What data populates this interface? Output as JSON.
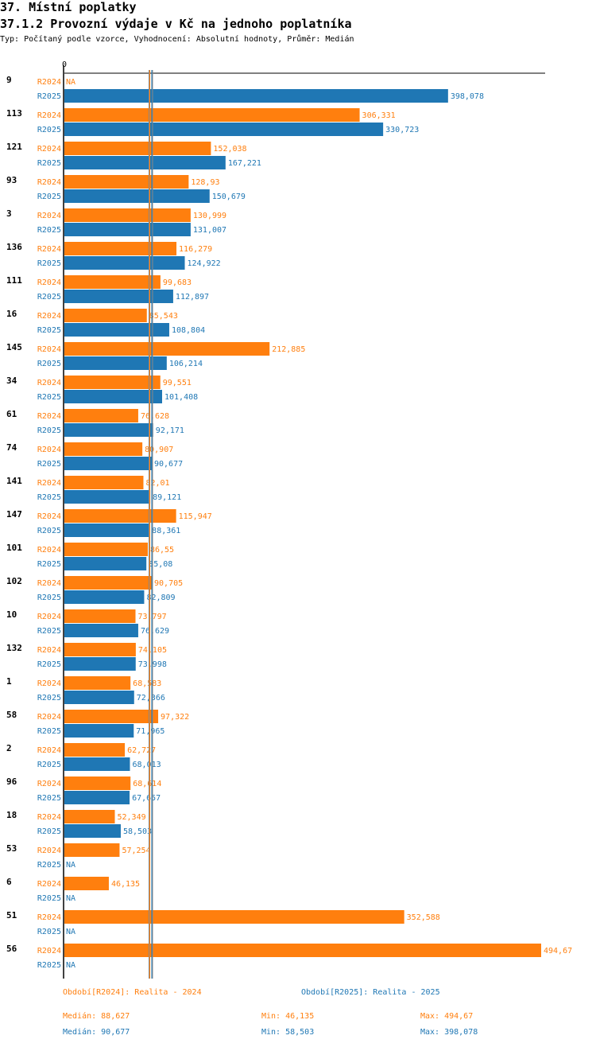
{
  "header": {
    "title": "37. Místní poplatky",
    "subtitle": "37.1.2 Provozní výdaje v Kč na jednoho poplatníka",
    "meta": "Typ: Počítaný podle vzorce, Vyhodnocení: Absolutní hodnoty, Průměr: Medián"
  },
  "colors": {
    "r2024": "#ff7f0e",
    "r2025": "#1f77b4",
    "text": "#000000"
  },
  "chart_data": {
    "type": "bar",
    "orientation": "horizontal",
    "title": "37.1.2 Provozní výdaje v Kč na jednoho poplatníka",
    "x_axis_label": "0",
    "xlim": [
      0,
      494.67
    ],
    "series_names": [
      "R2024",
      "R2025"
    ],
    "na_label": "NA",
    "median_lines": [
      88.627,
      90.677
    ],
    "groups": [
      {
        "id": "9",
        "r2024": null,
        "r2024_label": "NA",
        "r2025": 398.078,
        "r2025_label": "398,078"
      },
      {
        "id": "113",
        "r2024": 306.331,
        "r2024_label": "306,331",
        "r2025": 330.723,
        "r2025_label": "330,723"
      },
      {
        "id": "121",
        "r2024": 152.038,
        "r2024_label": "152,038",
        "r2025": 167.221,
        "r2025_label": "167,221"
      },
      {
        "id": "93",
        "r2024": 128.93,
        "r2024_label": "128,93",
        "r2025": 150.679,
        "r2025_label": "150,679"
      },
      {
        "id": "3",
        "r2024": 130.999,
        "r2024_label": "130,999",
        "r2025": 131.007,
        "r2025_label": "131,007"
      },
      {
        "id": "136",
        "r2024": 116.279,
        "r2024_label": "116,279",
        "r2025": 124.922,
        "r2025_label": "124,922"
      },
      {
        "id": "111",
        "r2024": 99.683,
        "r2024_label": "99,683",
        "r2025": 112.897,
        "r2025_label": "112,897"
      },
      {
        "id": "16",
        "r2024": 85.543,
        "r2024_label": "85,543",
        "r2025": 108.804,
        "r2025_label": "108,804"
      },
      {
        "id": "145",
        "r2024": 212.885,
        "r2024_label": "212,885",
        "r2025": 106.214,
        "r2025_label": "106,214"
      },
      {
        "id": "34",
        "r2024": 99.551,
        "r2024_label": "99,551",
        "r2025": 101.408,
        "r2025_label": "101,408"
      },
      {
        "id": "61",
        "r2024": 76.628,
        "r2024_label": "76,628",
        "r2025": 92.171,
        "r2025_label": "92,171"
      },
      {
        "id": "74",
        "r2024": 80.907,
        "r2024_label": "80,907",
        "r2025": 90.677,
        "r2025_label": "90,677"
      },
      {
        "id": "141",
        "r2024": 82.01,
        "r2024_label": "82,01",
        "r2025": 89.121,
        "r2025_label": "89,121"
      },
      {
        "id": "147",
        "r2024": 115.947,
        "r2024_label": "115,947",
        "r2025": 88.361,
        "r2025_label": "88,361"
      },
      {
        "id": "101",
        "r2024": 86.55,
        "r2024_label": "86,55",
        "r2025": 85.08,
        "r2025_label": "85,08"
      },
      {
        "id": "102",
        "r2024": 90.705,
        "r2024_label": "90,705",
        "r2025": 82.809,
        "r2025_label": "82,809"
      },
      {
        "id": "10",
        "r2024": 73.797,
        "r2024_label": "73,797",
        "r2025": 76.629,
        "r2025_label": "76,629"
      },
      {
        "id": "132",
        "r2024": 74.105,
        "r2024_label": "74,105",
        "r2025": 73.998,
        "r2025_label": "73,998"
      },
      {
        "id": "1",
        "r2024": 68.583,
        "r2024_label": "68,583",
        "r2025": 72.366,
        "r2025_label": "72,366"
      },
      {
        "id": "58",
        "r2024": 97.322,
        "r2024_label": "97,322",
        "r2025": 71.965,
        "r2025_label": "71,965"
      },
      {
        "id": "2",
        "r2024": 62.727,
        "r2024_label": "62,727",
        "r2025": 68.013,
        "r2025_label": "68,013"
      },
      {
        "id": "96",
        "r2024": 68.614,
        "r2024_label": "68,614",
        "r2025": 67.657,
        "r2025_label": "67,657"
      },
      {
        "id": "18",
        "r2024": 52.349,
        "r2024_label": "52,349",
        "r2025": 58.503,
        "r2025_label": "58,503"
      },
      {
        "id": "53",
        "r2024": 57.254,
        "r2024_label": "57,254",
        "r2025": null,
        "r2025_label": "NA"
      },
      {
        "id": "6",
        "r2024": 46.135,
        "r2024_label": "46,135",
        "r2025": null,
        "r2025_label": "NA"
      },
      {
        "id": "51",
        "r2024": 352.588,
        "r2024_label": "352,588",
        "r2025": null,
        "r2025_label": "NA"
      },
      {
        "id": "56",
        "r2024": 494.67,
        "r2024_label": "494,67",
        "r2025": null,
        "r2025_label": "NA"
      }
    ]
  },
  "footer": {
    "legend_2024": "Období[R2024]: Realita - 2024",
    "legend_2025": "Období[R2025]: Realita - 2025",
    "stats_2024": {
      "median": "Medián: 88,627",
      "min": "Min: 46,135",
      "max": "Max: 494,67"
    },
    "stats_2025": {
      "median": "Medián: 90,677",
      "min": "Min: 58,503",
      "max": "Max: 398,078"
    }
  }
}
